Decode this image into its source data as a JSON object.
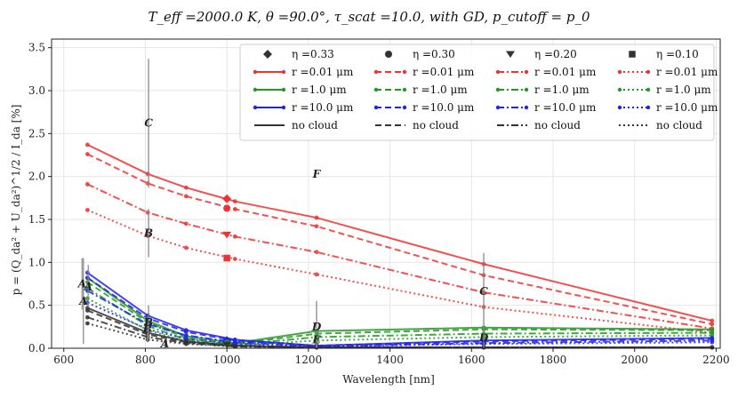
{
  "chart_data": {
    "type": "line",
    "title": "T_eff =2000.0 K, θ =90.0°, τ_scat =10.0, with GD, p_cutoff = p_0",
    "xlabel": "Wavelength [nm]",
    "ylabel": "p = (Q_da² + U_da²)^1/2 / I_da [%]",
    "xlim": [
      570,
      2210
    ],
    "ylim": [
      0,
      3.6
    ],
    "xticks": [
      600,
      800,
      1000,
      1200,
      1400,
      1600,
      1800,
      2000,
      2200
    ],
    "yticks": [
      0.0,
      0.5,
      1.0,
      1.5,
      2.0,
      2.5,
      3.0,
      3.5
    ],
    "grid": true,
    "x": [
      658,
      806,
      900,
      1020,
      1220,
      1630,
      2190
    ],
    "legend": {
      "position": "top-right",
      "headers": [
        {
          "label": "η =0.33",
          "marker": "diamond"
        },
        {
          "label": "η =0.30",
          "marker": "circle"
        },
        {
          "label": "η =0.20",
          "marker": "triangle-down"
        },
        {
          "label": "η =0.10",
          "marker": "square"
        }
      ],
      "rows": [
        {
          "label": "r =0.01 μm",
          "color": "#ee3333"
        },
        {
          "label": "r =1.0 μm",
          "color": "#229922"
        },
        {
          "label": "r =10.0 μm",
          "color": "#2222ee"
        },
        {
          "label": "no cloud",
          "color": "#333333"
        }
      ]
    },
    "series": [
      {
        "name": "η=0.33 r=0.01",
        "color": "#ee3333",
        "dash": "solid",
        "values": [
          2.37,
          2.03,
          1.87,
          1.71,
          1.52,
          0.98,
          0.32
        ]
      },
      {
        "name": "η=0.30 r=0.01",
        "color": "#ee3333",
        "dash": "dashed",
        "values": [
          2.26,
          1.92,
          1.77,
          1.62,
          1.42,
          0.85,
          0.28
        ]
      },
      {
        "name": "η=0.20 r=0.01",
        "color": "#ee3333",
        "dash": "dashdot",
        "values": [
          1.91,
          1.58,
          1.45,
          1.3,
          1.12,
          0.65,
          0.23
        ]
      },
      {
        "name": "η=0.10 r=0.01",
        "color": "#ee3333",
        "dash": "dotted",
        "values": [
          1.61,
          1.31,
          1.17,
          1.04,
          0.86,
          0.48,
          0.18
        ]
      },
      {
        "name": "η=0.33 r=1.0",
        "color": "#229922",
        "dash": "solid",
        "values": [
          0.82,
          0.32,
          0.14,
          0.06,
          0.2,
          0.24,
          0.22
        ]
      },
      {
        "name": "η=0.30 r=1.0",
        "color": "#229922",
        "dash": "dashed",
        "values": [
          0.77,
          0.3,
          0.12,
          0.05,
          0.17,
          0.22,
          0.21
        ]
      },
      {
        "name": "η=0.20 r=1.0",
        "color": "#229922",
        "dash": "dashdot",
        "values": [
          0.7,
          0.26,
          0.1,
          0.04,
          0.13,
          0.17,
          0.18
        ]
      },
      {
        "name": "η=0.10 r=1.0",
        "color": "#229922",
        "dash": "dotted",
        "values": [
          0.58,
          0.21,
          0.08,
          0.03,
          0.09,
          0.13,
          0.15
        ]
      },
      {
        "name": "η=0.33 r=10.0",
        "color": "#2222ee",
        "dash": "solid",
        "values": [
          0.88,
          0.38,
          0.21,
          0.1,
          0.03,
          0.09,
          0.12
        ]
      },
      {
        "name": "η=0.30 r=10.0",
        "color": "#2222ee",
        "dash": "dashed",
        "values": [
          0.82,
          0.35,
          0.19,
          0.09,
          0.03,
          0.08,
          0.11
        ]
      },
      {
        "name": "η=0.20 r=10.0",
        "color": "#2222ee",
        "dash": "dashdot",
        "values": [
          0.67,
          0.28,
          0.15,
          0.07,
          0.02,
          0.06,
          0.09
        ]
      },
      {
        "name": "η=0.10 r=10.0",
        "color": "#2222ee",
        "dash": "dotted",
        "values": [
          0.53,
          0.22,
          0.11,
          0.05,
          0.02,
          0.05,
          0.07
        ]
      },
      {
        "name": "η=0.33 no cloud",
        "color": "#333333",
        "dash": "solid",
        "values": [
          0.47,
          0.18,
          0.08,
          0.03,
          0.01,
          0.01,
          0.01
        ]
      },
      {
        "name": "η=0.30 no cloud",
        "color": "#333333",
        "dash": "dashed",
        "values": [
          0.44,
          0.16,
          0.07,
          0.03,
          0.01,
          0.01,
          0.01
        ]
      },
      {
        "name": "η=0.20 no cloud",
        "color": "#333333",
        "dash": "dashdot",
        "values": [
          0.36,
          0.13,
          0.06,
          0.02,
          0.01,
          0.01,
          0.01
        ]
      },
      {
        "name": "η=0.10 no cloud",
        "color": "#333333",
        "dash": "dotted",
        "values": [
          0.29,
          0.1,
          0.05,
          0.02,
          0.01,
          0.01,
          0.01
        ]
      }
    ],
    "band_markers": [
      {
        "x": 1000,
        "y": 1.74,
        "color": "#ee3333",
        "marker": "diamond"
      },
      {
        "x": 1000,
        "y": 1.63,
        "color": "#ee3333",
        "marker": "circle"
      },
      {
        "x": 1000,
        "y": 1.32,
        "color": "#ee3333",
        "marker": "triangle-down"
      },
      {
        "x": 1000,
        "y": 1.05,
        "color": "#ee3333",
        "marker": "square"
      },
      {
        "x": 1000,
        "y": 0.09,
        "color": "#2222ee",
        "marker": "diamond"
      },
      {
        "x": 1000,
        "y": 0.06,
        "color": "#229922",
        "marker": "circle"
      },
      {
        "x": 1000,
        "y": 0.04,
        "color": "#333333",
        "marker": "triangle-down"
      }
    ],
    "observations": [
      {
        "label": "A",
        "x": 648,
        "y": 0.55,
        "err": 0.5
      },
      {
        "label": "A",
        "x": 645,
        "y": 0.75,
        "err": 0.3
      },
      {
        "label": "A",
        "x": 660,
        "y": 0.72,
        "err": 0.25
      },
      {
        "label": "B",
        "x": 808,
        "y": 1.34,
        "err": 0.28
      },
      {
        "label": "B",
        "x": 805,
        "y": 0.22,
        "err": 0.15
      },
      {
        "label": "B",
        "x": 808,
        "y": 0.3,
        "err": 0.2
      },
      {
        "label": "C",
        "x": 808,
        "y": 2.62,
        "err": 0.75
      },
      {
        "label": "A",
        "x": 848,
        "y": 0.05,
        "err": 0.05
      },
      {
        "label": "D",
        "x": 1220,
        "y": 0.25,
        "err": 0.3
      },
      {
        "label": "F",
        "x": 1220,
        "y": 2.03,
        "err": 0.0
      },
      {
        "label": "E",
        "x": 1220,
        "y": 0.1,
        "err": 0.1
      },
      {
        "label": "C",
        "x": 1630,
        "y": 0.66,
        "err": 0.45
      },
      {
        "label": "D",
        "x": 1630,
        "y": 0.12,
        "err": 0.12
      }
    ]
  }
}
